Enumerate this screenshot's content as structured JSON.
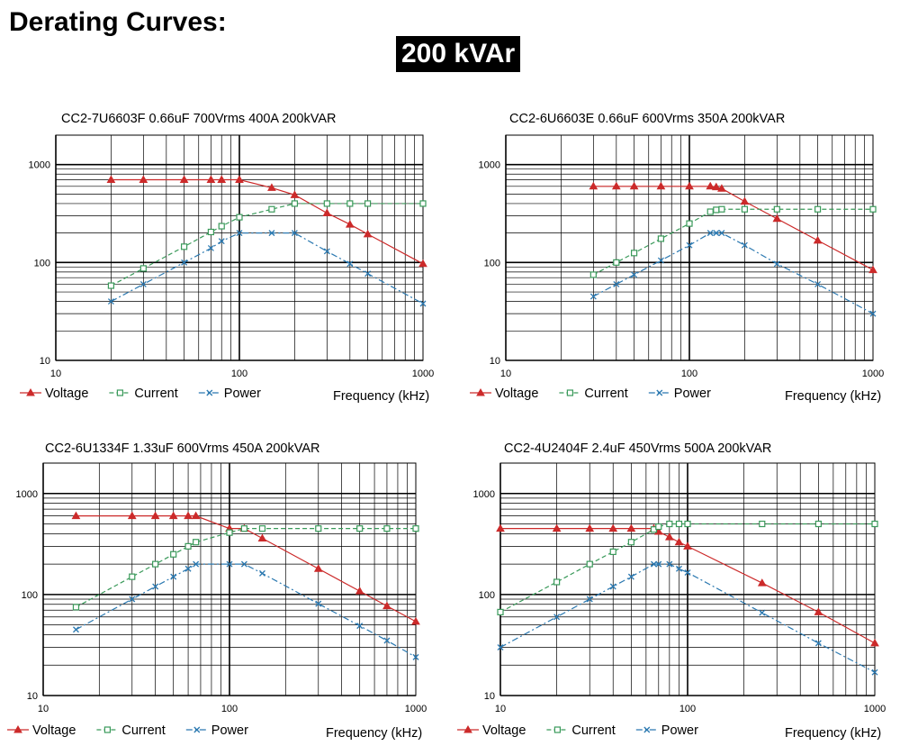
{
  "page": {
    "title": "Derating Curves:",
    "subtitle": "200 kVAr"
  },
  "colors": {
    "voltage": "#cc2a2a",
    "current": "#3a9a5a",
    "power": "#2a78b0"
  },
  "chart_data": [
    {
      "type": "line",
      "title": "CC2-7U6603F  0.66uF  700Vrms  400A  200kVAR",
      "xlabel": "Frequency  (kHz)",
      "ylabel": "",
      "xscale": "log",
      "yscale": "log",
      "xlim": [
        10,
        1000
      ],
      "ylim": [
        10,
        2000
      ],
      "x_ticks": [
        "10",
        "100",
        "1000"
      ],
      "y_ticks": [
        "10",
        "100",
        "1000"
      ],
      "grid": true,
      "legend": "bottom-left",
      "series": [
        {
          "name": "Voltage",
          "marker": "triangle",
          "style": "solid",
          "x": [
            20,
            30,
            50,
            70,
            80,
            100,
            150,
            200,
            300,
            400,
            500,
            1000
          ],
          "y": [
            700,
            700,
            700,
            700,
            700,
            700,
            580,
            490,
            320,
            245,
            195,
            97
          ]
        },
        {
          "name": "Current",
          "marker": "square",
          "style": "dashed",
          "x": [
            20,
            30,
            50,
            70,
            80,
            100,
            150,
            200,
            300,
            400,
            500,
            1000
          ],
          "y": [
            58,
            87,
            145,
            205,
            235,
            290,
            350,
            400,
            400,
            400,
            400,
            400
          ]
        },
        {
          "name": "Power",
          "marker": "x",
          "style": "dashdot",
          "x": [
            20,
            30,
            50,
            70,
            80,
            100,
            150,
            200,
            300,
            400,
            500,
            1000
          ],
          "y": [
            40,
            60,
            100,
            140,
            165,
            200,
            200,
            200,
            130,
            97,
            77,
            38
          ]
        }
      ]
    },
    {
      "type": "line",
      "title": "CC2-6U6603E  0.66uF  600Vrms  350A  200kVAR",
      "xlabel": "Frequency  (kHz)",
      "ylabel": "",
      "xscale": "log",
      "yscale": "log",
      "xlim": [
        10,
        1000
      ],
      "ylim": [
        10,
        2000
      ],
      "x_ticks": [
        "10",
        "100",
        "1000"
      ],
      "y_ticks": [
        "10",
        "100",
        "1000"
      ],
      "grid": true,
      "legend": "bottom-left",
      "series": [
        {
          "name": "Voltage",
          "marker": "triangle",
          "style": "solid",
          "x": [
            30,
            40,
            50,
            70,
            100,
            130,
            140,
            150,
            200,
            300,
            500,
            1000
          ],
          "y": [
            600,
            600,
            600,
            600,
            600,
            600,
            590,
            570,
            420,
            280,
            168,
            84
          ]
        },
        {
          "name": "Current",
          "marker": "square",
          "style": "dashed",
          "x": [
            30,
            40,
            50,
            70,
            100,
            130,
            140,
            150,
            200,
            300,
            500,
            1000
          ],
          "y": [
            75,
            100,
            125,
            175,
            250,
            330,
            345,
            350,
            350,
            350,
            350,
            350
          ]
        },
        {
          "name": "Power",
          "marker": "x",
          "style": "dashdot",
          "x": [
            30,
            40,
            50,
            70,
            100,
            130,
            140,
            150,
            200,
            300,
            500,
            1000
          ],
          "y": [
            45,
            60,
            75,
            105,
            150,
            200,
            200,
            200,
            150,
            97,
            60,
            30
          ]
        }
      ]
    },
    {
      "type": "line",
      "title": "CC2-6U1334F  1.33uF  600Vrms  450A  200kVAR",
      "xlabel": "Frequency  (kHz)",
      "ylabel": "",
      "xscale": "log",
      "yscale": "log",
      "xlim": [
        10,
        1000
      ],
      "ylim": [
        10,
        2000
      ],
      "x_ticks": [
        "10",
        "100",
        "1000"
      ],
      "y_ticks": [
        "10",
        "100",
        "1000"
      ],
      "grid": true,
      "legend": "bottom-left",
      "series": [
        {
          "name": "Voltage",
          "marker": "triangle",
          "style": "solid",
          "x": [
            15,
            30,
            40,
            50,
            60,
            66,
            100,
            120,
            150,
            300,
            500,
            700,
            1000
          ],
          "y": [
            600,
            600,
            600,
            600,
            600,
            600,
            450,
            450,
            360,
            180,
            108,
            77,
            54
          ]
        },
        {
          "name": "Current",
          "marker": "square",
          "style": "dashed",
          "x": [
            15,
            30,
            40,
            50,
            60,
            66,
            100,
            120,
            150,
            300,
            500,
            700,
            1000
          ],
          "y": [
            75,
            150,
            200,
            250,
            300,
            330,
            410,
            450,
            450,
            450,
            450,
            450,
            450
          ]
        },
        {
          "name": "Power",
          "marker": "x",
          "style": "dashdot",
          "x": [
            15,
            30,
            40,
            50,
            60,
            66,
            100,
            120,
            150,
            300,
            500,
            700,
            1000
          ],
          "y": [
            45,
            90,
            120,
            150,
            180,
            200,
            200,
            200,
            162,
            81,
            49,
            35,
            24
          ]
        }
      ]
    },
    {
      "type": "line",
      "title": "CC2-4U2404F  2.4uF  450Vrms  500A  200kVAR",
      "xlabel": "Frequency  (kHz)",
      "ylabel": "",
      "xscale": "log",
      "yscale": "log",
      "xlim": [
        10,
        1000
      ],
      "ylim": [
        10,
        2000
      ],
      "x_ticks": [
        "10",
        "100",
        "1000"
      ],
      "y_ticks": [
        "10",
        "100",
        "1000"
      ],
      "grid": true,
      "legend": "bottom-left",
      "series": [
        {
          "name": "Voltage",
          "marker": "triangle",
          "style": "solid",
          "x": [
            10,
            20,
            30,
            40,
            50,
            66,
            70,
            80,
            90,
            100,
            250,
            500,
            1000
          ],
          "y": [
            450,
            450,
            450,
            450,
            450,
            450,
            420,
            370,
            330,
            300,
            130,
            67,
            33
          ]
        },
        {
          "name": "Current",
          "marker": "square",
          "style": "dashed",
          "x": [
            10,
            20,
            30,
            40,
            50,
            66,
            70,
            80,
            90,
            100,
            250,
            500,
            1000
          ],
          "y": [
            67,
            133,
            200,
            265,
            330,
            440,
            470,
            500,
            500,
            500,
            500,
            500,
            500
          ]
        },
        {
          "name": "Power",
          "marker": "x",
          "style": "dashdot",
          "x": [
            10,
            20,
            30,
            40,
            50,
            66,
            70,
            80,
            90,
            100,
            250,
            500,
            1000
          ],
          "y": [
            30,
            60,
            90,
            120,
            150,
            200,
            200,
            200,
            180,
            165,
            66,
            33,
            17
          ]
        }
      ]
    }
  ]
}
